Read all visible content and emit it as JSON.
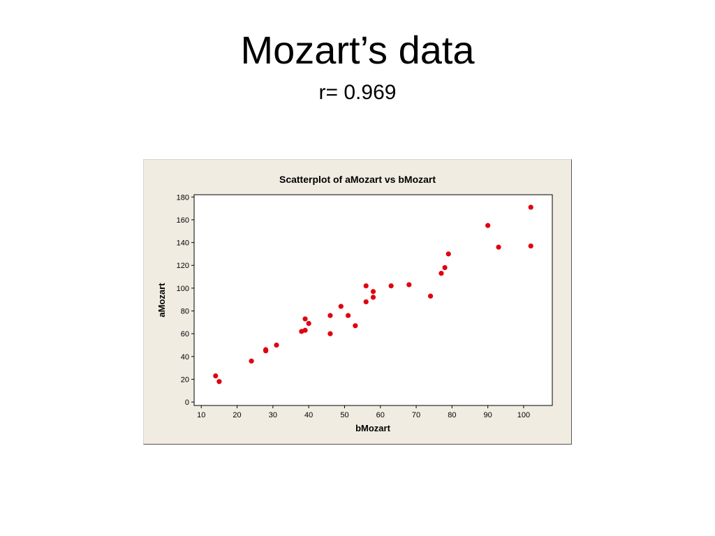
{
  "slide": {
    "title": "Mozart’s data",
    "subtitle": "r= 0.969"
  },
  "chart_data": {
    "type": "scatter",
    "title": "Scatterplot of aMozart vs bMozart",
    "xlabel": "bMozart",
    "ylabel": "aMozart",
    "xlim": [
      8,
      108
    ],
    "ylim": [
      -3,
      182
    ],
    "xticks": [
      10,
      20,
      30,
      40,
      50,
      60,
      70,
      80,
      90,
      100
    ],
    "yticks": [
      0,
      20,
      40,
      60,
      80,
      100,
      120,
      140,
      160,
      180
    ],
    "grid": false,
    "marker_color": "#e0000f",
    "points": [
      {
        "x": 14,
        "y": 23
      },
      {
        "x": 15,
        "y": 18
      },
      {
        "x": 24,
        "y": 36
      },
      {
        "x": 28,
        "y": 45
      },
      {
        "x": 28,
        "y": 46
      },
      {
        "x": 31,
        "y": 50
      },
      {
        "x": 38,
        "y": 62
      },
      {
        "x": 39,
        "y": 63
      },
      {
        "x": 39,
        "y": 73
      },
      {
        "x": 40,
        "y": 69
      },
      {
        "x": 46,
        "y": 76
      },
      {
        "x": 46,
        "y": 60
      },
      {
        "x": 49,
        "y": 84
      },
      {
        "x": 51,
        "y": 76
      },
      {
        "x": 53,
        "y": 67
      },
      {
        "x": 56,
        "y": 102
      },
      {
        "x": 56,
        "y": 88
      },
      {
        "x": 58,
        "y": 97
      },
      {
        "x": 58,
        "y": 92
      },
      {
        "x": 63,
        "y": 102
      },
      {
        "x": 68,
        "y": 103
      },
      {
        "x": 74,
        "y": 93
      },
      {
        "x": 77,
        "y": 113
      },
      {
        "x": 78,
        "y": 118
      },
      {
        "x": 79,
        "y": 130
      },
      {
        "x": 90,
        "y": 155
      },
      {
        "x": 93,
        "y": 136
      },
      {
        "x": 102,
        "y": 171
      },
      {
        "x": 102,
        "y": 137
      }
    ]
  }
}
